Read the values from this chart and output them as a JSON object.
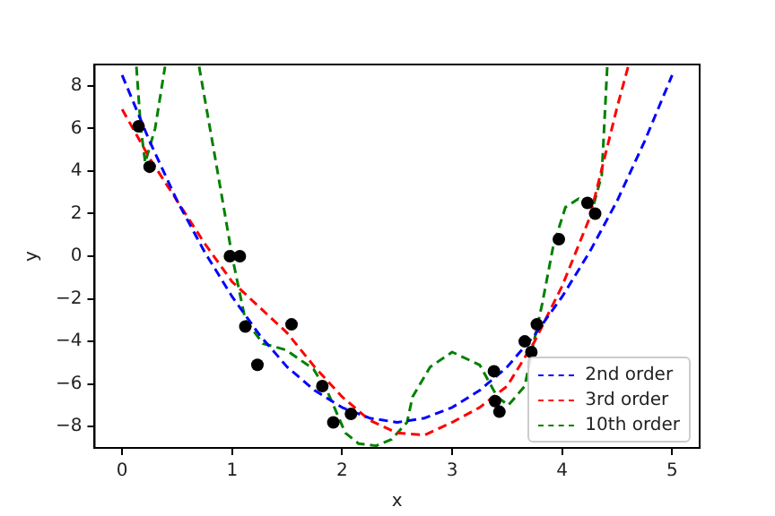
{
  "chart_data": {
    "type": "line",
    "xlabel": "x",
    "ylabel": "y",
    "xlim": [
      -0.25,
      5.25
    ],
    "ylim": [
      -9,
      9
    ],
    "xticks": [
      0,
      1,
      2,
      3,
      4,
      5
    ],
    "yticks": [
      {
        "value": -8,
        "label": "−8"
      },
      {
        "value": -6,
        "label": "−6"
      },
      {
        "value": -4,
        "label": "−4"
      },
      {
        "value": -2,
        "label": "−2"
      },
      0,
      2,
      4,
      6,
      8
    ],
    "grid": false,
    "legend": "bottom right",
    "series": [
      {
        "type": "scatter",
        "color": "#000000",
        "marker": "circle",
        "x": [
          0.15,
          0.25,
          0.98,
          1.07,
          1.12,
          1.23,
          1.54,
          1.82,
          1.92,
          2.08,
          3.38,
          3.39,
          3.43,
          3.66,
          3.72,
          3.77,
          3.97,
          4.23,
          4.3
        ],
        "values": [
          6.1,
          4.2,
          0,
          0,
          -3.3,
          -5.1,
          -3.2,
          -6.1,
          -7.8,
          -7.4,
          -5.4,
          -6.8,
          -7.3,
          -4.0,
          -4.5,
          -3.2,
          0.8,
          2.5,
          2.0
        ]
      },
      {
        "name": "2nd order",
        "color": "#0000ff",
        "marker": "none",
        "line_style": "dashed",
        "x": [
          0,
          0.25,
          0.5,
          0.75,
          1,
          1.25,
          1.5,
          1.75,
          2,
          2.25,
          2.5,
          2.75,
          3,
          3.25,
          3.5,
          3.75,
          4,
          4.25,
          4.5,
          4.75,
          5
        ],
        "values": [
          8.5,
          5.4,
          2.6,
          0.2,
          -1.9,
          -3.7,
          -5.2,
          -6.3,
          -7.1,
          -7.6,
          -7.8,
          -7.6,
          -7.1,
          -6.3,
          -5.2,
          -3.7,
          -1.9,
          0.2,
          2.6,
          5.4,
          8.5
        ]
      },
      {
        "name": "3rd order",
        "color": "#ff0000",
        "marker": "none",
        "line_style": "dashed",
        "x": [
          0,
          0.25,
          0.5,
          0.75,
          1,
          1.25,
          1.5,
          1.75,
          2,
          2.25,
          2.5,
          2.75,
          3,
          3.25,
          3.5,
          3.75,
          4,
          4.25,
          4.5,
          4.6
        ],
        "values": [
          6.9,
          4.6,
          2.6,
          0.6,
          -1.2,
          -2.4,
          -3.6,
          -5.2,
          -6.6,
          -7.7,
          -8.3,
          -8.4,
          -7.8,
          -7.1,
          -6.1,
          -4.0,
          -1.4,
          1.8,
          7.0,
          8.9
        ]
      },
      {
        "name": "10th order",
        "color": "#008000",
        "marker": "none",
        "line_style": "dashed",
        "x": [
          0.13,
          0.17,
          0.21,
          0.3,
          0.39,
          0.55,
          0.7,
          0.85,
          1.0,
          1.12,
          1.28,
          1.49,
          1.74,
          1.87,
          2.03,
          2.15,
          2.31,
          2.45,
          2.59,
          2.64,
          2.8,
          3.0,
          3.25,
          3.41,
          3.51,
          3.66,
          3.74,
          3.82,
          3.92,
          4.03,
          4.15,
          4.28,
          4.36,
          4.41
        ],
        "values": [
          8.9,
          6.0,
          4.4,
          6.0,
          8.9,
          null,
          8.9,
          4.5,
          0,
          -3.0,
          -4.1,
          -4.4,
          -5.3,
          -6.4,
          -8.3,
          -8.8,
          -8.9,
          -8.6,
          -7.8,
          -6.6,
          -5.2,
          -4.5,
          -5.1,
          -6.6,
          -7.0,
          -6.1,
          -4.1,
          -2.2,
          0.5,
          2.3,
          2.7,
          2.3,
          3.8,
          8.9
        ]
      }
    ]
  }
}
